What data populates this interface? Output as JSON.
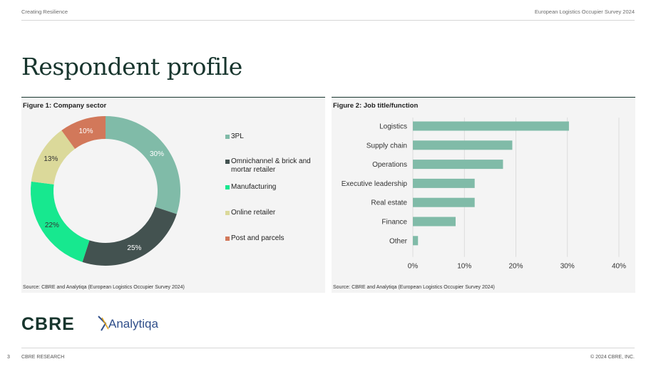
{
  "header": {
    "left": "Creating Resilience",
    "right": "European Logistics Occupier Survey 2024"
  },
  "page_title": "Respondent profile",
  "figures": [
    {
      "title": "Figure 1: Company sector",
      "source": "Source: CBRE and Analytiqa (European Logistics Occupier Survey 2024)"
    },
    {
      "title": "Figure 2: Job title/function",
      "source": "Source: CBRE and Analytiqa (European Logistics Occupier Survey 2024)"
    }
  ],
  "chart_data": [
    {
      "type": "pie",
      "title": "Figure 1: Company sector",
      "donut": true,
      "legend": "right",
      "categories": [
        "3PL",
        "Omnichannel & brick and mortar retailer",
        "Manufacturing",
        "Online retailer",
        "Post and parcels"
      ],
      "values": [
        30,
        25,
        22,
        13,
        10
      ],
      "labels": [
        "30%",
        "25%",
        "22%",
        "13%",
        "10%"
      ],
      "colors": [
        "#80bba8",
        "#435250",
        "#17e88f",
        "#dbd99a",
        "#d2785a"
      ]
    },
    {
      "type": "bar",
      "orientation": "horizontal",
      "title": "Figure 2: Job title/function",
      "categories": [
        "Logistics",
        "Supply chain",
        "Operations",
        "Executive leadership",
        "Real estate",
        "Finance",
        "Other"
      ],
      "values": [
        30.3,
        19.3,
        17.5,
        12,
        12,
        8.3,
        1
      ],
      "xlim": [
        0,
        40
      ],
      "xticks": [
        "0%",
        "10%",
        "20%",
        "30%",
        "40%"
      ],
      "grid": true,
      "color": "#80bba8"
    }
  ],
  "logos": {
    "cbre": "CBRE",
    "analytiqa": "Analytiqa"
  },
  "footer": {
    "page": "3",
    "left": "CBRE RESEARCH",
    "right": "© 2024 CBRE, INC."
  }
}
